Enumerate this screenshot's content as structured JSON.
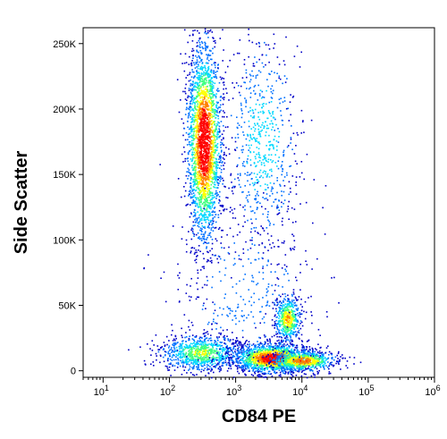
{
  "chart_data": {
    "type": "scatter",
    "subtype": "flow-cytometry-density-plot",
    "xlabel": "CD84 PE",
    "ylabel": "Side Scatter",
    "x_scale": "log",
    "xlim": [
      5,
      1000000
    ],
    "ylim": [
      -5000,
      262144
    ],
    "x_ticks": [
      {
        "value": 10,
        "base": "10",
        "exp": "1"
      },
      {
        "value": 100,
        "base": "10",
        "exp": "2"
      },
      {
        "value": 1000,
        "base": "10",
        "exp": "3"
      },
      {
        "value": 10000,
        "base": "10",
        "exp": "4"
      },
      {
        "value": 100000,
        "base": "10",
        "exp": "5"
      },
      {
        "value": 1000000,
        "base": "10",
        "exp": "6"
      }
    ],
    "y_ticks": [
      {
        "value": 0,
        "label": "0"
      },
      {
        "value": 50000,
        "label": "50K"
      },
      {
        "value": 100000,
        "label": "100K"
      },
      {
        "value": 150000,
        "label": "150K"
      },
      {
        "value": 200000,
        "label": "200K"
      },
      {
        "value": 250000,
        "label": "250K"
      }
    ],
    "grid": false,
    "legend": "none",
    "colormap": [
      "#0000c8",
      "#0070ff",
      "#00d8ff",
      "#40ff80",
      "#ffff00",
      "#ff8000",
      "#ff0000"
    ],
    "populations": [
      {
        "x_center": 330,
        "x_spread_decades": 0.13,
        "y_center": 175000,
        "y_sd": 38000,
        "count": 2600,
        "intensity": 1.0
      },
      {
        "x_center": 2500,
        "x_spread_decades": 0.28,
        "y_center": 175000,
        "y_sd": 42000,
        "count": 650,
        "intensity": 0.35
      },
      {
        "x_center": 6000,
        "x_spread_decades": 0.1,
        "y_center": 40000,
        "y_sd": 9000,
        "count": 500,
        "intensity": 0.7
      },
      {
        "x_center": 300,
        "x_spread_decades": 0.32,
        "y_center": 14000,
        "y_sd": 7000,
        "count": 900,
        "intensity": 0.55
      },
      {
        "x_center": 3500,
        "x_spread_decades": 0.3,
        "y_center": 10000,
        "y_sd": 5500,
        "count": 1600,
        "intensity": 0.95
      },
      {
        "x_center": 10000,
        "x_spread_decades": 0.25,
        "y_center": 8000,
        "y_sd": 4000,
        "count": 700,
        "intensity": 0.8
      },
      {
        "x_center": 1500,
        "x_spread_decades": 0.55,
        "y_center": 60000,
        "y_sd": 35000,
        "count": 350,
        "intensity": 0.2
      }
    ]
  }
}
